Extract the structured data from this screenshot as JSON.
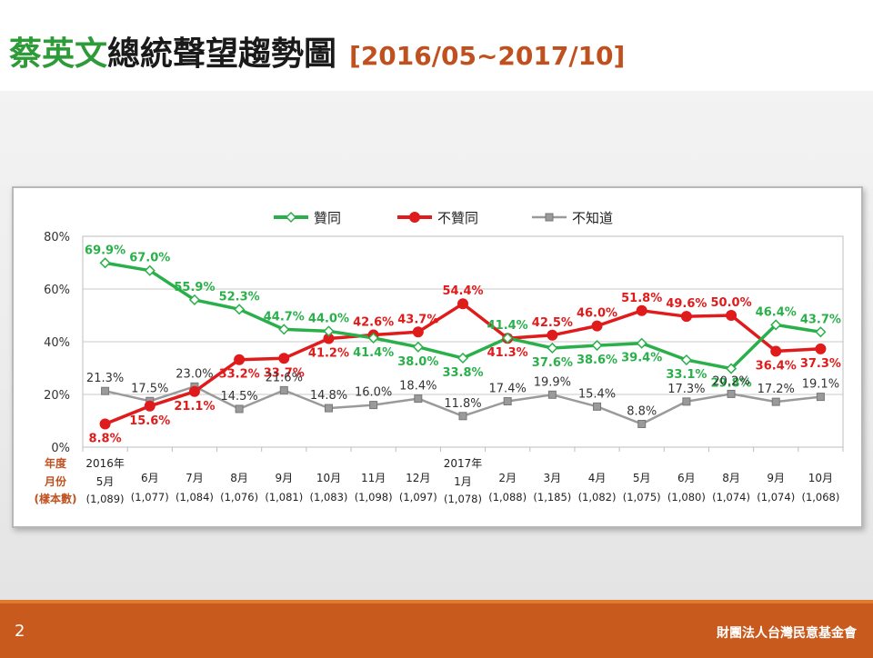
{
  "title": {
    "name_green": "蔡英文",
    "rest": "總統聲望趨勢圖",
    "range": "[2016/05~2017/10]"
  },
  "footer": {
    "page_number": "2",
    "organization": "財團法人台灣民意基金會"
  },
  "colors": {
    "approve": "#2ab04a",
    "disapprove": "#e01b1b",
    "unknown": "#9a9a9a",
    "axis_row_labels": "#c0501e",
    "footer": "#c85a1e"
  },
  "chart_data": {
    "type": "line",
    "ylim": [
      0,
      80
    ],
    "yticks": [
      "0%",
      "20%",
      "40%",
      "60%",
      "80%"
    ],
    "grid": true,
    "legend_position": "top",
    "row_labels": [
      "年度",
      "月份",
      "(樣本數)"
    ],
    "categories": [
      {
        "year": "2016年",
        "month": "5月",
        "n": "(1,089)"
      },
      {
        "year": "",
        "month": "6月",
        "n": "(1,077)"
      },
      {
        "year": "",
        "month": "7月",
        "n": "(1,084)"
      },
      {
        "year": "",
        "month": "8月",
        "n": "(1,076)"
      },
      {
        "year": "",
        "month": "9月",
        "n": "(1,081)"
      },
      {
        "year": "",
        "month": "10月",
        "n": "(1,083)"
      },
      {
        "year": "",
        "month": "11月",
        "n": "(1,098)"
      },
      {
        "year": "",
        "month": "12月",
        "n": "(1,097)"
      },
      {
        "year": "2017年",
        "month": "1月",
        "n": "(1,078)"
      },
      {
        "year": "",
        "month": "2月",
        "n": "(1,088)"
      },
      {
        "year": "",
        "month": "3月",
        "n": "(1,185)"
      },
      {
        "year": "",
        "month": "4月",
        "n": "(1,082)"
      },
      {
        "year": "",
        "month": "5月",
        "n": "(1,075)"
      },
      {
        "year": "",
        "month": "6月",
        "n": "(1,080)"
      },
      {
        "year": "",
        "month": "8月",
        "n": "(1,074)"
      },
      {
        "year": "",
        "month": "9月",
        "n": "(1,074)"
      },
      {
        "year": "",
        "month": "10月",
        "n": "(1,068)"
      }
    ],
    "series": [
      {
        "name": "贊同",
        "marker": "diamond",
        "values": [
          69.9,
          67.0,
          55.9,
          52.3,
          44.7,
          44.0,
          41.4,
          38.0,
          33.8,
          41.4,
          37.6,
          38.6,
          39.4,
          33.1,
          29.8,
          46.4,
          43.7
        ],
        "labels": [
          "69.9%",
          "67.0%",
          "55.9%",
          "52.3%",
          "44.7%",
          "44.0%",
          "41.4%",
          "38.0%",
          "33.8%",
          "41.4%",
          "37.6%",
          "38.6%",
          "39.4%",
          "33.1%",
          "29.8%",
          "46.4%",
          "43.7%"
        ]
      },
      {
        "name": "不贊同",
        "marker": "circle",
        "values": [
          8.8,
          15.6,
          21.1,
          33.2,
          33.7,
          41.2,
          42.6,
          43.7,
          54.4,
          41.3,
          42.5,
          46.0,
          51.8,
          49.6,
          50.0,
          36.4,
          37.3
        ],
        "labels": [
          "8.8%",
          "15.6%",
          "21.1%",
          "33.2%",
          "33.7%",
          "41.2%",
          "42.6%",
          "43.7%",
          "54.4%",
          "41.3%",
          "42.5%",
          "46.0%",
          "51.8%",
          "49.6%",
          "50.0%",
          "36.4%",
          "37.3%"
        ]
      },
      {
        "name": "不知道",
        "marker": "square",
        "values": [
          21.3,
          17.5,
          23.0,
          14.5,
          21.6,
          14.8,
          16.0,
          18.4,
          11.8,
          17.4,
          19.9,
          15.4,
          8.8,
          17.3,
          20.2,
          17.2,
          19.1
        ],
        "labels": [
          "21.3%",
          "17.5%",
          "23.0%",
          "14.5%",
          "21.6%",
          "14.8%",
          "16.0%",
          "18.4%",
          "11.8%",
          "17.4%",
          "19.9%",
          "15.4%",
          "8.8%",
          "17.3%",
          "20.2%",
          "17.2%",
          "19.1%"
        ]
      }
    ]
  }
}
